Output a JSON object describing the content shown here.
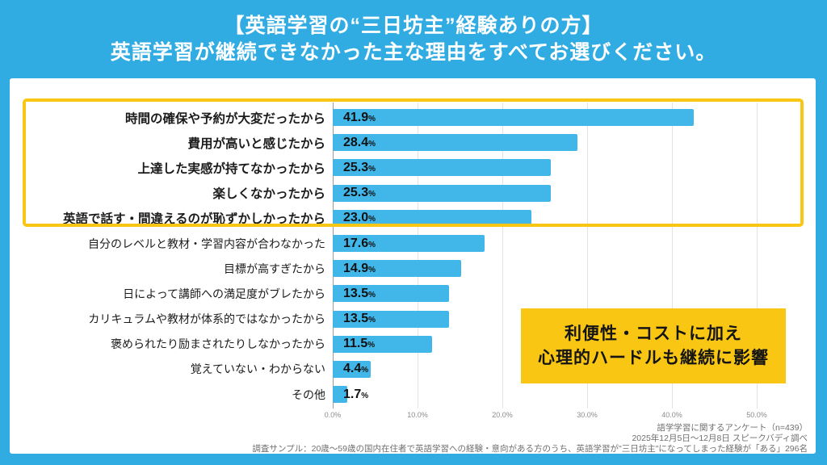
{
  "header": {
    "line1": "【英語学習の“三日坊主”経験ありの方】",
    "line2": "英語学習が継続できなかった主な理由をすべてお選びください。"
  },
  "chart_data": {
    "type": "bar",
    "orientation": "horizontal",
    "title": "英語学習が継続できなかった主な理由（複数選択）",
    "unit": "%",
    "xlim": [
      0,
      56
    ],
    "grid": true,
    "xticks": [
      "0.0%",
      "10.0%",
      "20.0%",
      "30.0%",
      "40.0%",
      "50.0%"
    ],
    "highlighted_top_rows": 5,
    "rows": [
      {
        "label": "時間の確保や予約が大変だったから",
        "value": 41.9,
        "display": "41.9",
        "highlighted": true
      },
      {
        "label": "費用が高いと感じたから",
        "value": 28.4,
        "display": "28.4",
        "highlighted": true
      },
      {
        "label": "上達した実感が持てなかったから",
        "value": 25.3,
        "display": "25.3",
        "highlighted": true
      },
      {
        "label": "楽しくなかったから",
        "value": 25.3,
        "display": "25.3",
        "highlighted": true
      },
      {
        "label": "英語で話す・間違えるのが恥ずかしかったから",
        "value": 23.0,
        "display": "23.0",
        "highlighted": true
      },
      {
        "label": "自分のレベルと教材・学習内容が合わなかった",
        "value": 17.6,
        "display": "17.6",
        "highlighted": false
      },
      {
        "label": "目標が高すぎたから",
        "value": 14.9,
        "display": "14.9",
        "highlighted": false
      },
      {
        "label": "日によって講師への満足度がブレたから",
        "value": 13.5,
        "display": "13.5",
        "highlighted": false
      },
      {
        "label": "カリキュラムや教材が体系的ではなかったから",
        "value": 13.5,
        "display": "13.5",
        "highlighted": false
      },
      {
        "label": "褒められたり励まされたりしなかったから",
        "value": 11.5,
        "display": "11.5",
        "highlighted": false
      },
      {
        "label": "覚えていない・わからない",
        "value": 4.4,
        "display": "4.4",
        "highlighted": false
      },
      {
        "label": "その他",
        "value": 1.7,
        "display": "1.7",
        "highlighted": false
      }
    ]
  },
  "annotation": {
    "line1": "利便性・コストに加え",
    "line2": "心理的ハードルも継続に影響"
  },
  "footer": {
    "line1": "語学学習に関するアンケート（n=439）",
    "line2": "2025年12月5日〜12月8日 スピークバディ調べ",
    "line3": "調査サンプル：20歳〜59歳の国内在住者で英語学習への経験・意向がある方のうち、英語学習が\"三日坊主\"になってしまった経験が「ある」296名"
  },
  "colors": {
    "background_blue": "#31ACE3",
    "bar_blue": "#41B6E8",
    "accent_yellow": "#F9C613",
    "card_white": "#FFFFFF"
  }
}
